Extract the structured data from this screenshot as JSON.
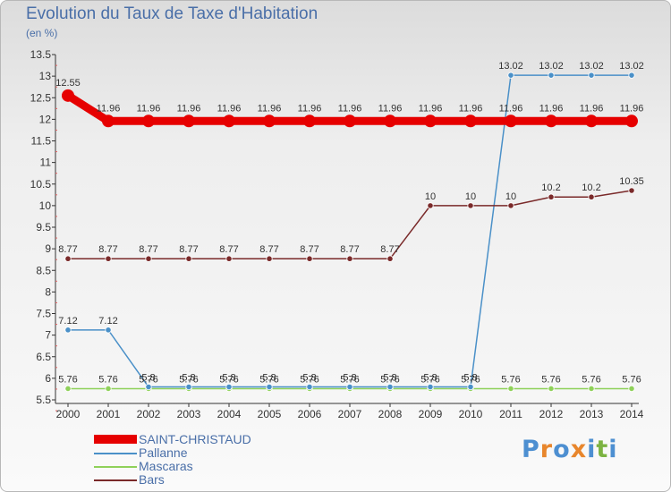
{
  "header": {
    "title": "Evolution du Taux de Taxe d'Habitation",
    "units": "(en %)"
  },
  "logo": {
    "text": "Proxiti",
    "letter_colors": [
      "#4d8fd1",
      "#e8862c",
      "#4d8fd1",
      "#e8862c",
      "#4d8fd1",
      "#7cb342",
      "#4d8fd1"
    ]
  },
  "chart_data": {
    "type": "line",
    "x": [
      2000,
      2001,
      2002,
      2003,
      2004,
      2005,
      2006,
      2007,
      2008,
      2009,
      2010,
      2011,
      2012,
      2013,
      2014
    ],
    "ylim": [
      5.5,
      13.5
    ],
    "yticks": [
      "5.5",
      "6",
      "6.5",
      "7",
      "7.5",
      "8",
      "8.5",
      "9",
      "9.5",
      "10",
      "10.5",
      "11",
      "11.5",
      "12",
      "12.5",
      "13",
      "13.5"
    ],
    "grid": false,
    "legend_position": "bottom-left",
    "series": [
      {
        "name": "SAINT-CHRISTAUD",
        "color": "#e60000",
        "values": [
          12.55,
          11.96,
          11.96,
          11.96,
          11.96,
          11.96,
          11.96,
          11.96,
          11.96,
          11.96,
          11.96,
          11.96,
          11.96,
          11.96,
          11.96
        ],
        "labels": [
          "12.55",
          "11.96",
          "11.96",
          "11.96",
          "11.96",
          "11.96",
          "11.96",
          "11.96",
          "11.96",
          "11.96",
          "11.96",
          "11.96",
          "11.96",
          "11.96",
          "11.96"
        ]
      },
      {
        "name": "Pallanne",
        "color": "#4a90c8",
        "values": [
          7.12,
          7.12,
          5.8,
          5.8,
          5.8,
          5.8,
          5.8,
          5.8,
          5.8,
          5.8,
          5.8,
          13.02,
          13.02,
          13.02,
          13.02
        ],
        "labels": [
          "7.12",
          "7.12",
          "5.8",
          "5.8",
          "5.8",
          "5.8",
          "5.8",
          "5.8",
          "5.8",
          "5.8",
          "5.8",
          "13.02",
          "13.02",
          "13.02",
          "13.02"
        ]
      },
      {
        "name": "Mascaras",
        "color": "#8fd15a",
        "values": [
          5.76,
          5.76,
          5.76,
          5.76,
          5.76,
          5.76,
          5.76,
          5.76,
          5.76,
          5.76,
          5.76,
          5.76,
          5.76,
          5.76,
          5.76
        ],
        "labels": [
          "5.76",
          "5.76",
          "5.76",
          "5.76",
          "5.76",
          "5.76",
          "5.76",
          "5.76",
          "5.76",
          "5.76",
          "5.76",
          "5.76",
          "5.76",
          "5.76",
          "5.76"
        ]
      },
      {
        "name": "Bars",
        "color": "#7a2a2a",
        "values": [
          8.77,
          8.77,
          8.77,
          8.77,
          8.77,
          8.77,
          8.77,
          8.77,
          8.77,
          10,
          10,
          10,
          10.2,
          10.2,
          10.35
        ],
        "labels": [
          "8.77",
          "8.77",
          "8.77",
          "8.77",
          "8.77",
          "8.77",
          "8.77",
          "8.77",
          "8.77",
          "10",
          "10",
          "10",
          "10.2",
          "10.2",
          "10.35"
        ]
      }
    ]
  }
}
